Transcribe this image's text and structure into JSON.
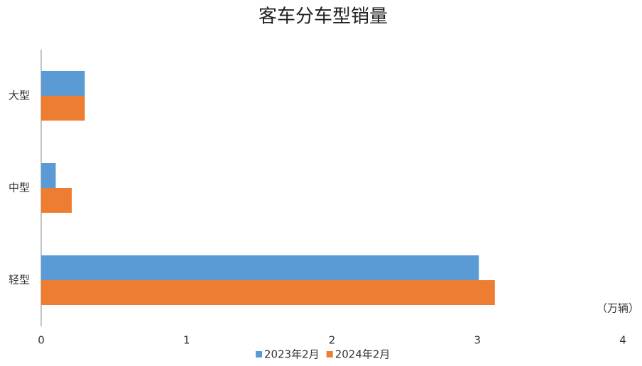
{
  "chart_data": {
    "type": "hbar",
    "title": "客车分车型销量",
    "categories": [
      "大型",
      "中型",
      "轻型"
    ],
    "series": [
      {
        "name": "2023年2月",
        "color": "#5b9bd5",
        "values": [
          0.3,
          0.1,
          3.01
        ]
      },
      {
        "name": "2024年2月",
        "color": "#ed7d31",
        "values": [
          0.3,
          0.21,
          3.12
        ]
      }
    ],
    "xlim": [
      0,
      4
    ],
    "xticks": [
      0,
      1,
      2,
      3,
      4
    ],
    "grid": false,
    "annotation": "（万辆）",
    "legend": "bottom"
  }
}
